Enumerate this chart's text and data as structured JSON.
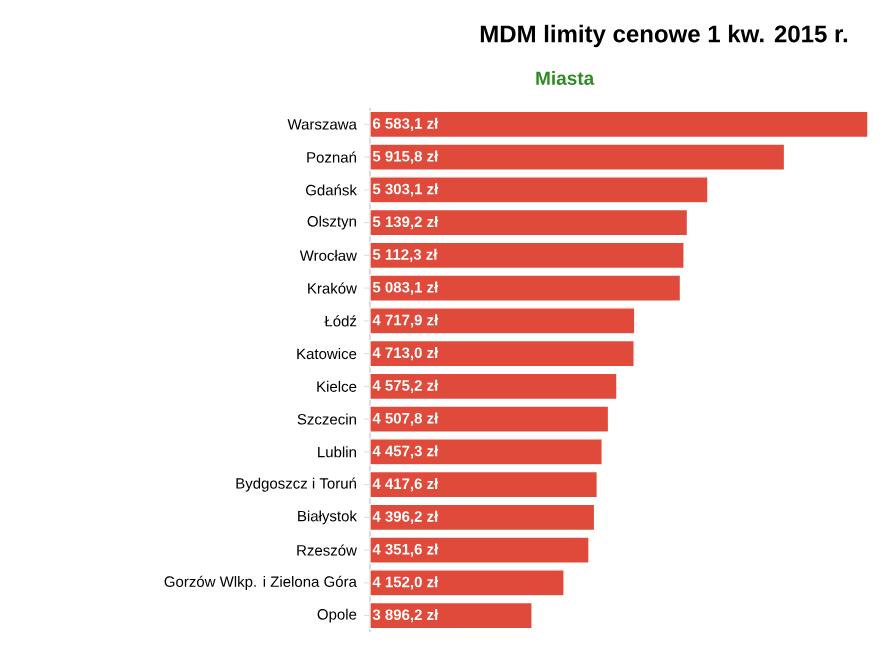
{
  "chart_data": {
    "type": "bar",
    "orientation": "horizontal",
    "title": "MDM limity cenowe 1 kw. 2015 r.",
    "subtitle": "Miasta",
    "categories": [
      "Warszawa",
      "Poznań",
      "Gdańsk",
      "Olsztyn",
      "Wrocław",
      "Kraków",
      "Łódź",
      "Katowice",
      "Kielce",
      "Szczecin",
      "Lublin",
      "Bydgoszcz i Toruń",
      "Białystok",
      "Rzeszów",
      "Gorzów Wlkp. i Zielona Góra",
      "Opole"
    ],
    "values": [
      6583.1,
      5915.8,
      5303.1,
      5139.2,
      5112.3,
      5083.1,
      4717.9,
      4713.0,
      4575.2,
      4507.8,
      4457.3,
      4417.6,
      4396.2,
      4351.6,
      4152.0,
      3896.2
    ],
    "value_labels": [
      "6 583,1 zł",
      "5 915,8 zł",
      "5 303,1 zł",
      "5 139,2 zł",
      "5 112,3 zł",
      "5 083,1 zł",
      "4 717,9 zł",
      "4 713,0 zł",
      "4 575,2 zł",
      "4 507,8 zł",
      "4 457,3 zł",
      "4 417,6 zł",
      "4 396,2 zł",
      "4 351,6 zł",
      "4 152,0 zł",
      "3 896,2 zł"
    ],
    "color": "#e04a3b",
    "xlim": [
      2600,
      6600
    ],
    "tick_labels": "y",
    "grid": false
  }
}
